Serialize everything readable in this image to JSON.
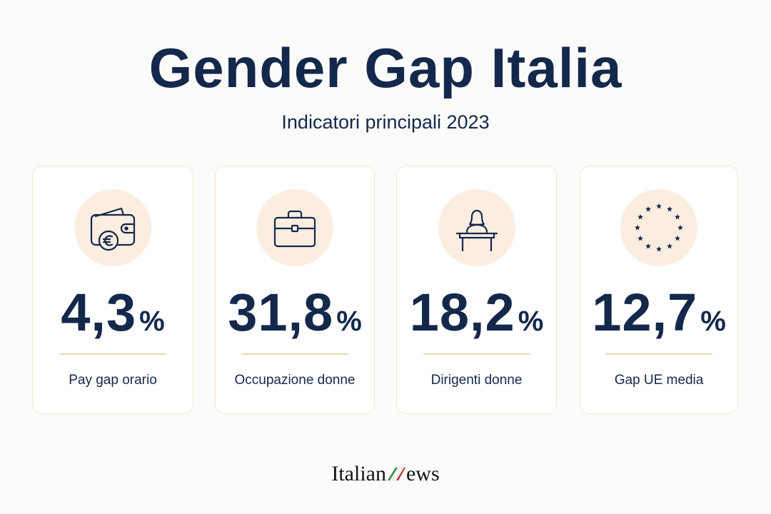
{
  "header": {
    "title": "Gender Gap Italia",
    "subtitle": "Indicatori principali 2023"
  },
  "cards": [
    {
      "icon": "wallet-euro-icon",
      "value": "4,3",
      "unit": "%",
      "label": "Pay gap orario"
    },
    {
      "icon": "briefcase-icon",
      "value": "31,8",
      "unit": "%",
      "label": "Occupazione donne"
    },
    {
      "icon": "woman-at-podium-icon",
      "value": "18,2",
      "unit": "%",
      "label": "Dirigenti donne"
    },
    {
      "icon": "eu-stars-icon",
      "value": "12,7",
      "unit": "%",
      "label": "Gap UE media"
    }
  ],
  "footer": {
    "brand_left": "Italian",
    "brand_right": "ews"
  },
  "colors": {
    "navy": "#14284b",
    "icon_circle": "#fbeee1",
    "card_border": "#f4e5d2",
    "rule": "#efd9b8",
    "flag_green": "#2e8b3a",
    "flag_red": "#c8242b"
  }
}
